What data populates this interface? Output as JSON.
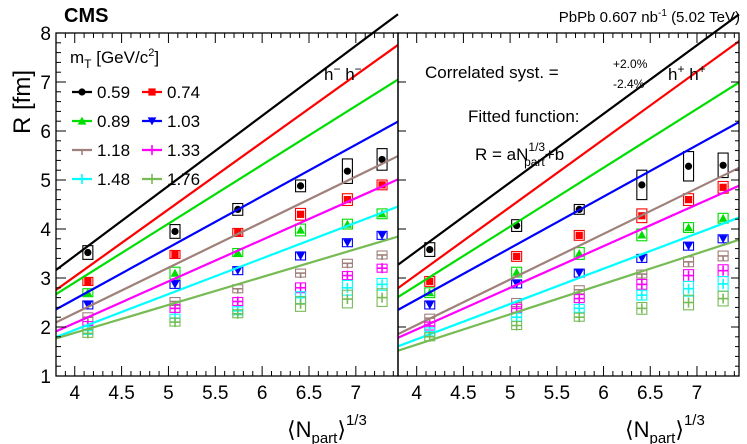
{
  "chart_data": {
    "type": "scatter",
    "experiment": "CMS",
    "luminosity": "PbPb 0.607 nb",
    "lumi_exp": "-1",
    "energy": "(5.02 TeV)",
    "ylabel": "R [fm]",
    "xlabel_main": "⟨N",
    "xlabel_sub": "part",
    "xlabel_tail": "⟩",
    "xlabel_sup": "1/3",
    "xlim": [
      3.8,
      7.45
    ],
    "ylim": [
      1,
      8
    ],
    "xticks": [
      "4",
      "4.5",
      "5",
      "5.5",
      "6",
      "6.5",
      "7"
    ],
    "xtick_values": [
      4,
      4.5,
      5,
      5.5,
      6,
      6.5,
      7
    ],
    "yticks": [
      "1",
      "2",
      "3",
      "4",
      "5",
      "6",
      "7",
      "8"
    ],
    "ytick_values": [
      1,
      2,
      3,
      4,
      5,
      6,
      7,
      8
    ],
    "legend_title": "m",
    "legend_title_sub": "T",
    "legend_title_rest": " [GeV/c",
    "legend_title_sup": "2",
    "legend_title_end": "]",
    "x_points": [
      4.14,
      5.07,
      5.74,
      6.41,
      6.91,
      7.28
    ],
    "panels": [
      {
        "label": "h",
        "label_sup1": "−",
        "label_mid": " h",
        "label_sup2": "−",
        "series": [
          {
            "name": "0.59",
            "color": "#000000",
            "marker": "circle",
            "values": [
              3.52,
              3.95,
              4.4,
              4.88,
              5.18,
              5.42
            ],
            "fit": [
              1.43,
              -2.27
            ],
            "sys": [
              0.14,
              0.14,
              0.12,
              0.12,
              0.25,
              0.22
            ]
          },
          {
            "name": "0.74",
            "color": "#ff0000",
            "marker": "square",
            "values": [
              2.93,
              3.48,
              3.93,
              4.3,
              4.6,
              4.9
            ],
            "fit": [
              1.37,
              -2.45
            ],
            "sys": [
              0.08,
              0.08,
              0.08,
              0.12,
              0.12,
              0.1
            ]
          },
          {
            "name": "0.89",
            "color": "#00dd00",
            "marker": "triangle-up",
            "values": [
              2.7,
              3.1,
              3.52,
              3.98,
              4.1,
              4.31
            ],
            "fit": [
              1.2,
              -1.89
            ],
            "sys": [
              0.06,
              0.12,
              0.07,
              0.12,
              0.1,
              0.1
            ]
          },
          {
            "name": "1.03",
            "color": "#0000ff",
            "marker": "triangle-down",
            "values": [
              2.45,
              2.87,
              3.15,
              3.45,
              3.72,
              3.87
            ],
            "fit": [
              1.05,
              -1.63
            ],
            "sys": [
              0.06,
              0.06,
              0.05,
              0.08,
              0.05,
              0.05
            ]
          },
          {
            "name": "1.18",
            "color": "#a0807a",
            "marker": "tee",
            "values": [
              2.2,
              2.52,
              2.78,
              3.1,
              3.3,
              3.47
            ],
            "fit": [
              0.93,
              -1.44
            ],
            "sys": [
              0.09,
              0.06,
              0.05,
              0.06,
              0.06,
              0.06
            ]
          },
          {
            "name": "1.33",
            "color": "#ff00ff",
            "marker": "cross",
            "values": [
              2.03,
              2.38,
              2.52,
              2.8,
              3.05,
              3.2
            ],
            "fit": [
              0.85,
              -1.32
            ],
            "sys": [
              0.06,
              0.05,
              0.05,
              0.1,
              0.08,
              0.08
            ]
          },
          {
            "name": "1.48",
            "color": "#00ffff",
            "marker": "cross",
            "values": [
              1.93,
              2.18,
              2.33,
              2.6,
              2.8,
              2.87
            ],
            "fit": [
              0.73,
              -0.98
            ],
            "sys": [
              0.07,
              0.05,
              0.05,
              0.12,
              0.15,
              0.12
            ]
          },
          {
            "name": "1.76",
            "color": "#77bb55",
            "marker": "cross",
            "values": [
              1.87,
              2.1,
              2.27,
              2.47,
              2.57,
              2.6
            ],
            "fit": [
              0.57,
              -0.4
            ],
            "sys": [
              0.08,
              0.07,
              0.06,
              0.15,
              0.18,
              0.18
            ]
          }
        ]
      },
      {
        "label": "h",
        "label_sup1": "+",
        "label_mid": " h",
        "label_sup2": "+",
        "annotation_corr": "Correlated syst. =",
        "annotation_plus": "+2.0%",
        "annotation_minus": "-2.4%",
        "annotation_fit": "Fitted function:",
        "formula_a": "R = aN",
        "formula_sup": "1/3",
        "formula_sub": "part",
        "formula_b": "+b",
        "series": [
          {
            "name": "0.59",
            "color": "#000000",
            "marker": "circle",
            "values": [
              3.58,
              4.07,
              4.4,
              4.9,
              5.28,
              5.3
            ],
            "fit": [
              1.4,
              -2.05
            ],
            "sys": [
              0.14,
              0.12,
              0.1,
              0.3,
              0.3,
              0.25
            ]
          },
          {
            "name": "0.74",
            "color": "#ff0000",
            "marker": "square",
            "values": [
              2.93,
              3.44,
              3.87,
              4.27,
              4.6,
              4.85
            ],
            "fit": [
              1.38,
              -2.45
            ],
            "sys": [
              0.1,
              0.1,
              0.1,
              0.14,
              0.12,
              0.12
            ]
          },
          {
            "name": "0.89",
            "color": "#00dd00",
            "marker": "triangle-up",
            "values": [
              2.7,
              3.12,
              3.5,
              3.88,
              4.03,
              4.22
            ],
            "fit": [
              1.2,
              -1.95
            ],
            "sys": [
              0.1,
              0.1,
              0.12,
              0.12,
              0.1,
              0.1
            ]
          },
          {
            "name": "1.03",
            "color": "#0000ff",
            "marker": "triangle-down",
            "values": [
              2.45,
              2.88,
              3.1,
              3.4,
              3.65,
              3.8
            ],
            "fit": [
              1.05,
              -1.64
            ],
            "sys": [
              0.07,
              0.06,
              0.06,
              0.08,
              0.07,
              0.07
            ]
          },
          {
            "name": "1.18",
            "color": "#a0807a",
            "marker": "tee",
            "values": [
              2.18,
              2.5,
              2.76,
              3.08,
              3.33,
              3.45
            ],
            "fit": [
              0.93,
              -1.68
            ],
            "sys": [
              0.08,
              0.07,
              0.06,
              0.07,
              0.1,
              0.1
            ]
          },
          {
            "name": "1.33",
            "color": "#ff00ff",
            "marker": "cross",
            "values": [
              2.02,
              2.38,
              2.58,
              2.87,
              3.05,
              3.15
            ],
            "fit": [
              0.85,
              -1.45
            ],
            "sys": [
              0.06,
              0.06,
              0.06,
              0.1,
              0.12,
              0.12
            ]
          },
          {
            "name": "1.48",
            "color": "#00ffff",
            "marker": "cross",
            "values": [
              1.9,
              2.2,
              2.38,
              2.65,
              2.78,
              2.88
            ],
            "fit": [
              0.72,
              -1.13
            ],
            "sys": [
              0.07,
              0.06,
              0.06,
              0.1,
              0.15,
              0.15
            ]
          },
          {
            "name": "1.76",
            "color": "#77bb55",
            "marker": "cross",
            "values": [
              1.8,
              2.03,
              2.2,
              2.38,
              2.5,
              2.58
            ],
            "fit": [
              0.62,
              -0.84
            ],
            "sys": [
              0.08,
              0.07,
              0.06,
              0.12,
              0.15,
              0.15
            ]
          }
        ]
      }
    ]
  }
}
